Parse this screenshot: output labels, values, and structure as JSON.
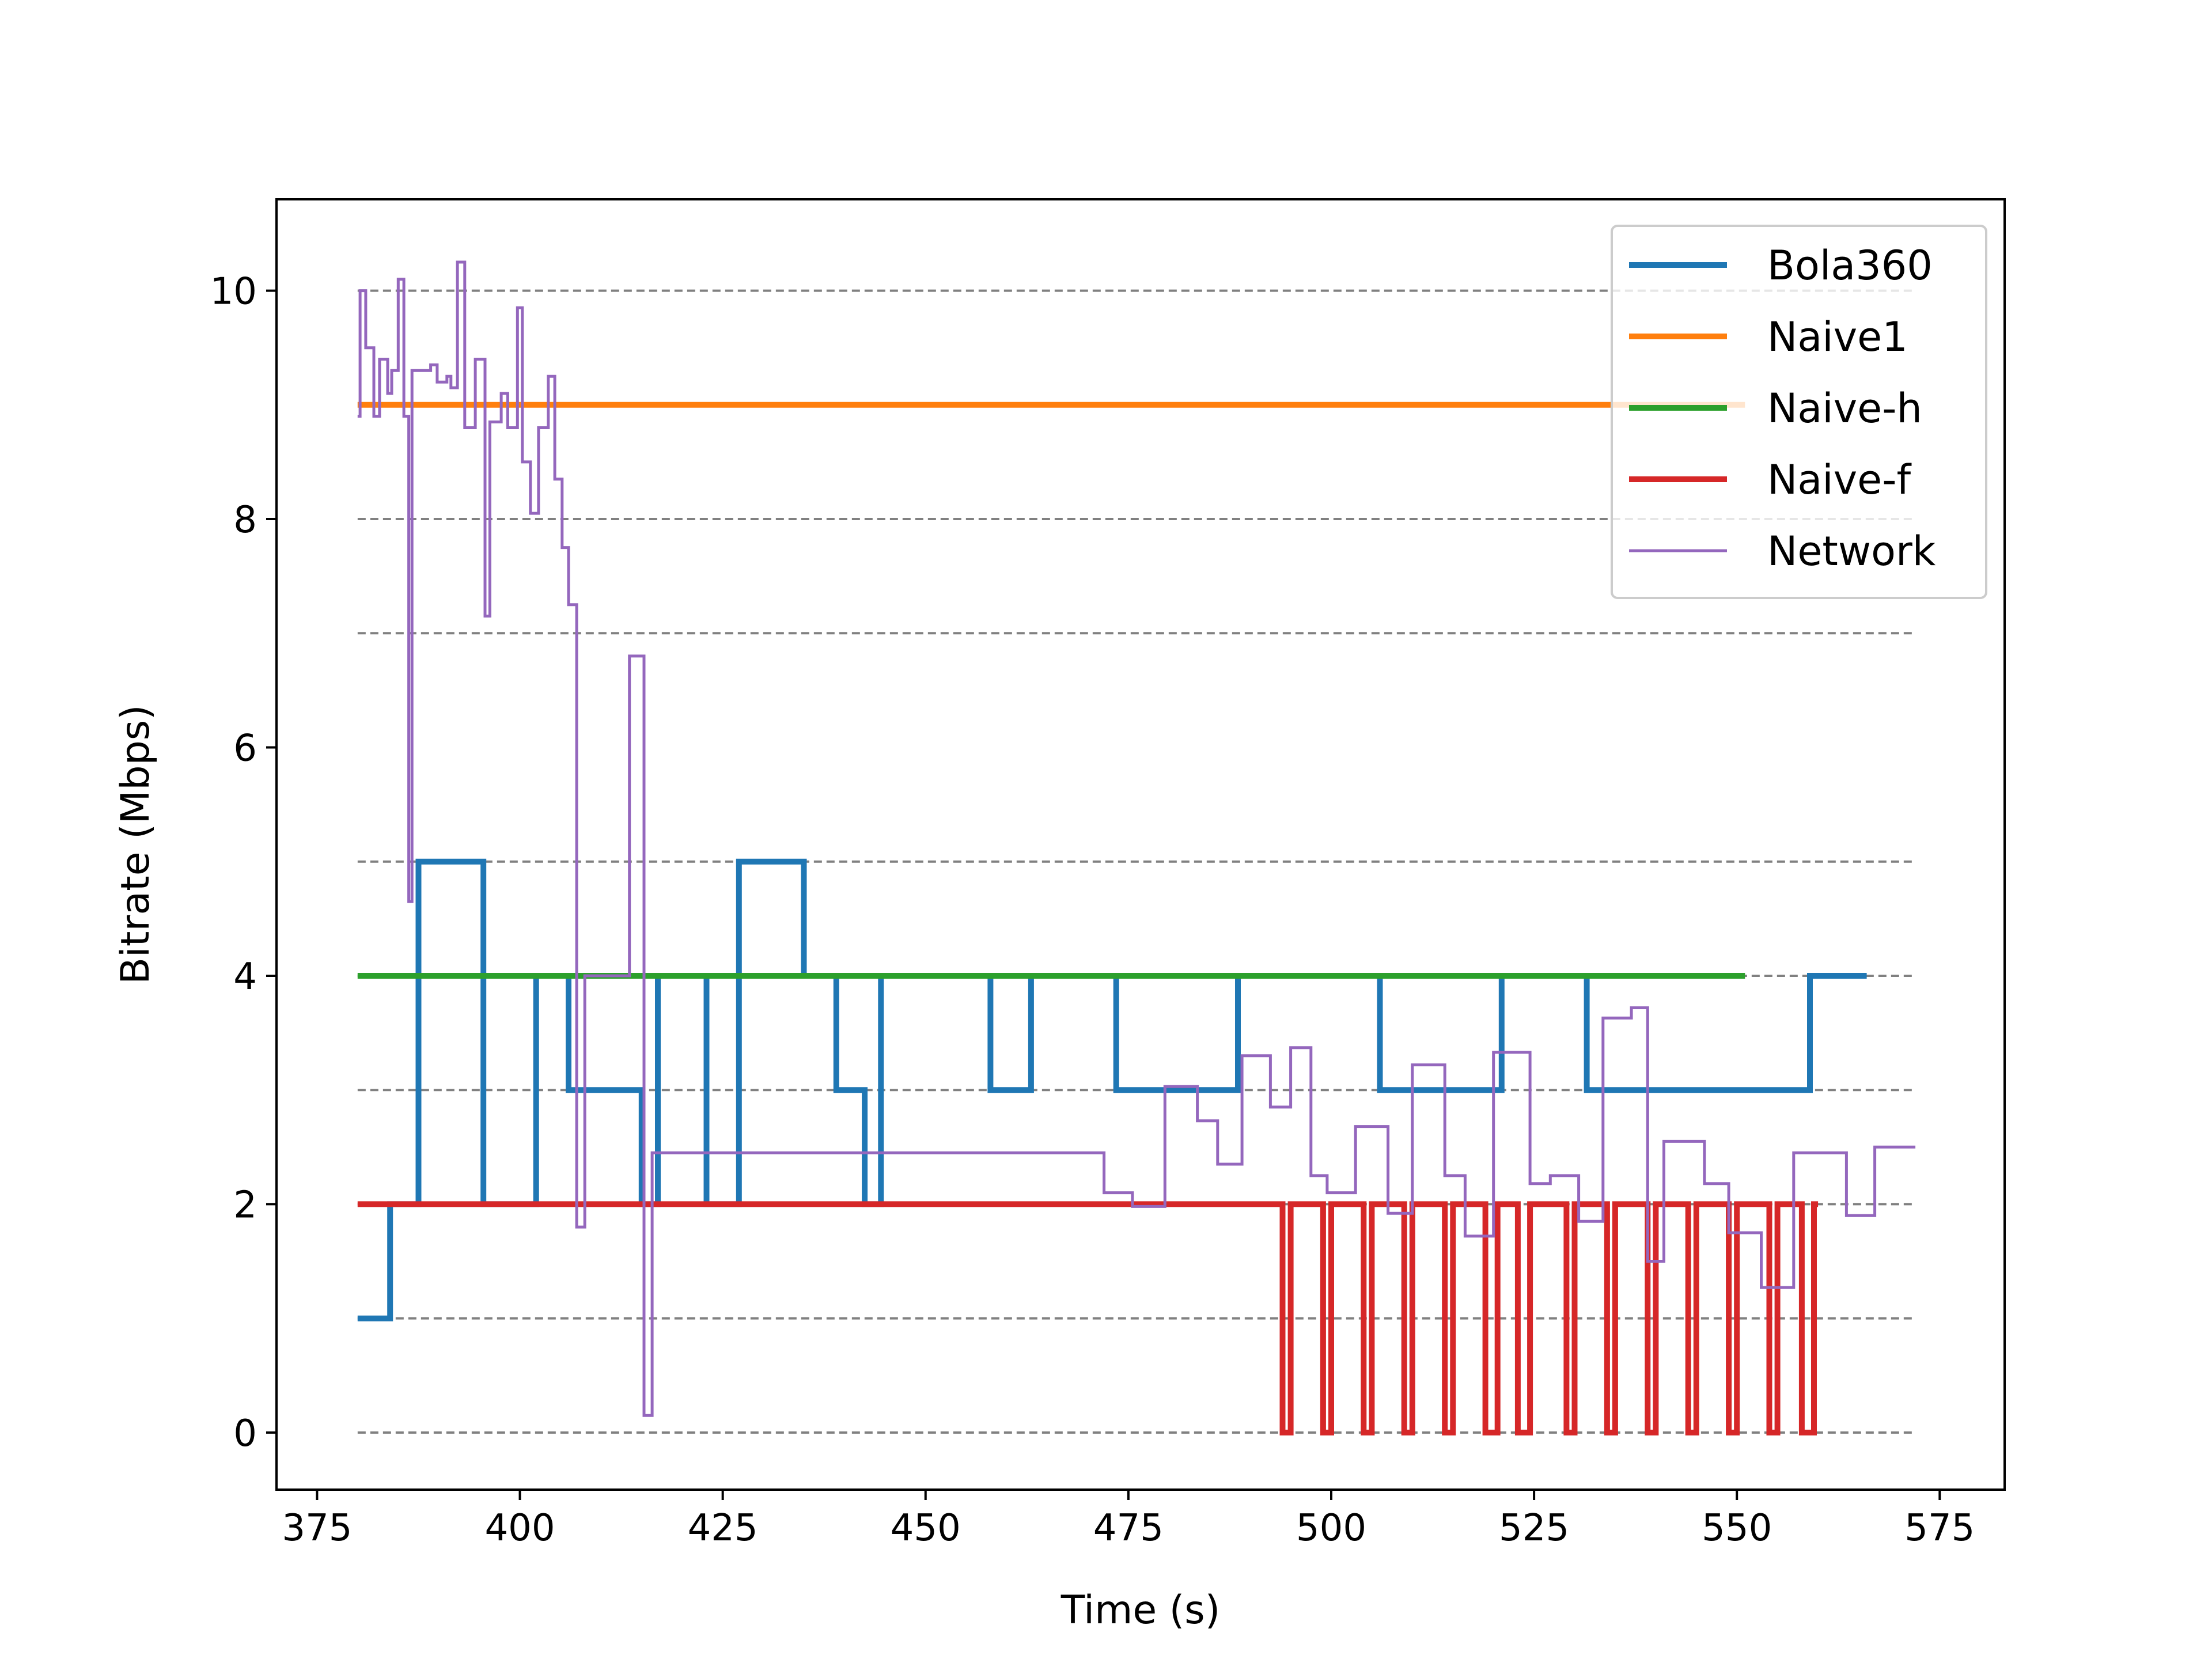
{
  "chart_data": {
    "type": "line",
    "xlabel": "Time (s)",
    "ylabel": "Bitrate (Mbps)",
    "xlim": [
      370,
      583
    ],
    "ylim": [
      -0.5,
      10.8
    ],
    "xticks": [
      375,
      400,
      425,
      450,
      475,
      500,
      525,
      550,
      575
    ],
    "yticks": [
      0,
      2,
      4,
      6,
      8,
      10
    ],
    "grid": {
      "axis": "y",
      "style": "dashed",
      "levels": [
        0,
        1,
        2,
        3,
        4,
        5,
        7,
        8,
        10
      ],
      "x_range": [
        380,
        572
      ],
      "color": "#808080"
    },
    "legend": "top-right",
    "series": [
      {
        "name": "Bola360",
        "color": "#1f77b4",
        "width": 10,
        "points": [
          [
            380,
            1
          ],
          [
            384,
            1
          ],
          [
            384,
            2
          ],
          [
            387.5,
            2
          ],
          [
            387.5,
            5
          ],
          [
            395.5,
            5
          ],
          [
            395.5,
            2
          ],
          [
            402,
            2
          ],
          [
            402,
            4
          ],
          [
            406,
            4
          ],
          [
            406,
            3
          ],
          [
            415,
            3
          ],
          [
            415,
            2
          ],
          [
            417,
            2
          ],
          [
            417,
            4
          ],
          [
            423,
            4
          ],
          [
            423,
            2
          ],
          [
            427,
            2
          ],
          [
            427,
            5
          ],
          [
            435,
            5
          ],
          [
            435,
            4
          ],
          [
            439,
            4
          ],
          [
            439,
            3
          ],
          [
            442.5,
            3
          ],
          [
            442.5,
            2
          ],
          [
            444.5,
            2
          ],
          [
            444.5,
            4
          ],
          [
            458,
            4
          ],
          [
            458,
            3
          ],
          [
            463,
            3
          ],
          [
            463,
            4
          ],
          [
            473.5,
            4
          ],
          [
            473.5,
            3
          ],
          [
            488.5,
            3
          ],
          [
            488.5,
            4
          ],
          [
            506,
            4
          ],
          [
            506,
            3
          ],
          [
            521,
            3
          ],
          [
            521,
            4
          ],
          [
            531.5,
            4
          ],
          [
            531.5,
            3
          ],
          [
            559,
            3
          ],
          [
            559,
            4
          ],
          [
            566,
            4
          ]
        ]
      },
      {
        "name": "Naive1",
        "color": "#ff7f0e",
        "width": 10,
        "points": [
          [
            380,
            9
          ],
          [
            551,
            9
          ]
        ]
      },
      {
        "name": "Naive-h",
        "color": "#2ca02c",
        "width": 10,
        "points": [
          [
            380,
            4
          ],
          [
            551,
            4
          ]
        ]
      },
      {
        "name": "Naive-f",
        "color": "#d62728",
        "width": 10,
        "points": [
          [
            380,
            2
          ],
          [
            494,
            2
          ],
          [
            494,
            0
          ],
          [
            495,
            0
          ],
          [
            495,
            2
          ],
          [
            499,
            2
          ],
          [
            499,
            0
          ],
          [
            500,
            0
          ],
          [
            500,
            2
          ],
          [
            504,
            2
          ],
          [
            504,
            0
          ],
          [
            505,
            0
          ],
          [
            505,
            2
          ],
          [
            509,
            2
          ],
          [
            509,
            0
          ],
          [
            510,
            0
          ],
          [
            510,
            2
          ],
          [
            514,
            2
          ],
          [
            514,
            0
          ],
          [
            515,
            0
          ],
          [
            515,
            2
          ],
          [
            519,
            2
          ],
          [
            519,
            0
          ],
          [
            520.5,
            0
          ],
          [
            520.5,
            2
          ],
          [
            523,
            2
          ],
          [
            523,
            0
          ],
          [
            524.5,
            0
          ],
          [
            524.5,
            2
          ],
          [
            529,
            2
          ],
          [
            529,
            0
          ],
          [
            530,
            0
          ],
          [
            530,
            2
          ],
          [
            534,
            2
          ],
          [
            534,
            0
          ],
          [
            535,
            0
          ],
          [
            535,
            2
          ],
          [
            539,
            2
          ],
          [
            539,
            0
          ],
          [
            540,
            0
          ],
          [
            540,
            2
          ],
          [
            544,
            2
          ],
          [
            544,
            0
          ],
          [
            545,
            0
          ],
          [
            545,
            2
          ],
          [
            549,
            2
          ],
          [
            549,
            0
          ],
          [
            550,
            0
          ],
          [
            550,
            2
          ],
          [
            554,
            2
          ],
          [
            554,
            0
          ],
          [
            555,
            0
          ],
          [
            555,
            2
          ],
          [
            558,
            2
          ],
          [
            558,
            0
          ],
          [
            559.5,
            0
          ],
          [
            559.5,
            2
          ],
          [
            560,
            2
          ]
        ]
      },
      {
        "name": "Network",
        "color": "#9467bd",
        "width": 5,
        "points": [
          [
            380,
            8.9
          ],
          [
            380.3,
            8.9
          ],
          [
            380.3,
            10
          ],
          [
            381,
            10
          ],
          [
            381,
            9.5
          ],
          [
            382,
            9.5
          ],
          [
            382,
            8.9
          ],
          [
            382.7,
            8.9
          ],
          [
            382.7,
            9.4
          ],
          [
            383.7,
            9.4
          ],
          [
            383.7,
            9.1
          ],
          [
            384.2,
            9.1
          ],
          [
            384.2,
            9.3
          ],
          [
            385,
            9.3
          ],
          [
            385,
            10.1
          ],
          [
            385.7,
            10.1
          ],
          [
            385.7,
            8.9
          ],
          [
            386.3,
            8.9
          ],
          [
            386.3,
            4.65
          ],
          [
            386.7,
            4.65
          ],
          [
            386.7,
            9.3
          ],
          [
            389,
            9.3
          ],
          [
            389,
            9.35
          ],
          [
            389.8,
            9.35
          ],
          [
            389.8,
            9.2
          ],
          [
            391,
            9.2
          ],
          [
            391,
            9.25
          ],
          [
            391.5,
            9.25
          ],
          [
            391.5,
            9.15
          ],
          [
            392.3,
            9.15
          ],
          [
            392.3,
            10.25
          ],
          [
            393.2,
            10.25
          ],
          [
            393.2,
            8.8
          ],
          [
            394.5,
            8.8
          ],
          [
            394.5,
            9.4
          ],
          [
            395.7,
            9.4
          ],
          [
            395.7,
            7.15
          ],
          [
            396.3,
            7.15
          ],
          [
            396.3,
            8.85
          ],
          [
            397.7,
            8.85
          ],
          [
            397.7,
            9.1
          ],
          [
            398.5,
            9.1
          ],
          [
            398.5,
            8.8
          ],
          [
            399.7,
            8.8
          ],
          [
            399.7,
            9.85
          ],
          [
            400.3,
            9.85
          ],
          [
            400.3,
            8.5
          ],
          [
            401.3,
            8.5
          ],
          [
            401.3,
            8.05
          ],
          [
            402.3,
            8.05
          ],
          [
            402.3,
            8.8
          ],
          [
            403.5,
            8.8
          ],
          [
            403.5,
            9.25
          ],
          [
            404.3,
            9.25
          ],
          [
            404.3,
            8.35
          ],
          [
            405.2,
            8.35
          ],
          [
            405.2,
            7.75
          ],
          [
            406,
            7.75
          ],
          [
            406,
            7.25
          ],
          [
            407,
            7.25
          ],
          [
            407,
            1.8
          ],
          [
            408,
            1.8
          ],
          [
            408,
            4
          ],
          [
            413.5,
            4
          ],
          [
            413.5,
            6.8
          ],
          [
            415.3,
            6.8
          ],
          [
            415.3,
            0.15
          ],
          [
            416.3,
            0.15
          ],
          [
            416.3,
            2.45
          ],
          [
            472,
            2.45
          ],
          [
            472,
            2.1
          ],
          [
            475.5,
            2.1
          ],
          [
            475.5,
            1.98
          ],
          [
            479.5,
            1.98
          ],
          [
            479.5,
            3.03
          ],
          [
            483.5,
            3.03
          ],
          [
            483.5,
            2.73
          ],
          [
            486,
            2.73
          ],
          [
            486,
            2.35
          ],
          [
            489,
            2.35
          ],
          [
            489,
            3.3
          ],
          [
            492.5,
            3.3
          ],
          [
            492.5,
            2.85
          ],
          [
            495,
            2.85
          ],
          [
            495,
            3.37
          ],
          [
            497.5,
            3.37
          ],
          [
            497.5,
            2.25
          ],
          [
            499.5,
            2.25
          ],
          [
            499.5,
            2.1
          ],
          [
            503,
            2.1
          ],
          [
            503,
            2.68
          ],
          [
            507,
            2.68
          ],
          [
            507,
            1.92
          ],
          [
            510,
            1.92
          ],
          [
            510,
            3.22
          ],
          [
            514,
            3.22
          ],
          [
            514,
            2.25
          ],
          [
            516.5,
            2.25
          ],
          [
            516.5,
            1.72
          ],
          [
            520,
            1.72
          ],
          [
            520,
            3.33
          ],
          [
            524.5,
            3.33
          ],
          [
            524.5,
            2.18
          ],
          [
            527,
            2.18
          ],
          [
            527,
            2.25
          ],
          [
            530.5,
            2.25
          ],
          [
            530.5,
            1.85
          ],
          [
            533.5,
            1.85
          ],
          [
            533.5,
            3.63
          ],
          [
            537,
            3.63
          ],
          [
            537,
            3.72
          ],
          [
            539,
            3.72
          ],
          [
            539,
            1.5
          ],
          [
            541,
            1.5
          ],
          [
            541,
            2.55
          ],
          [
            546,
            2.55
          ],
          [
            546,
            2.18
          ],
          [
            549,
            2.18
          ],
          [
            549,
            1.75
          ],
          [
            553,
            1.75
          ],
          [
            553,
            1.27
          ],
          [
            557,
            1.27
          ],
          [
            557,
            2.45
          ],
          [
            563.5,
            2.45
          ],
          [
            563.5,
            1.9
          ],
          [
            567,
            1.9
          ],
          [
            567,
            2.5
          ],
          [
            572,
            2.5
          ]
        ]
      }
    ]
  }
}
